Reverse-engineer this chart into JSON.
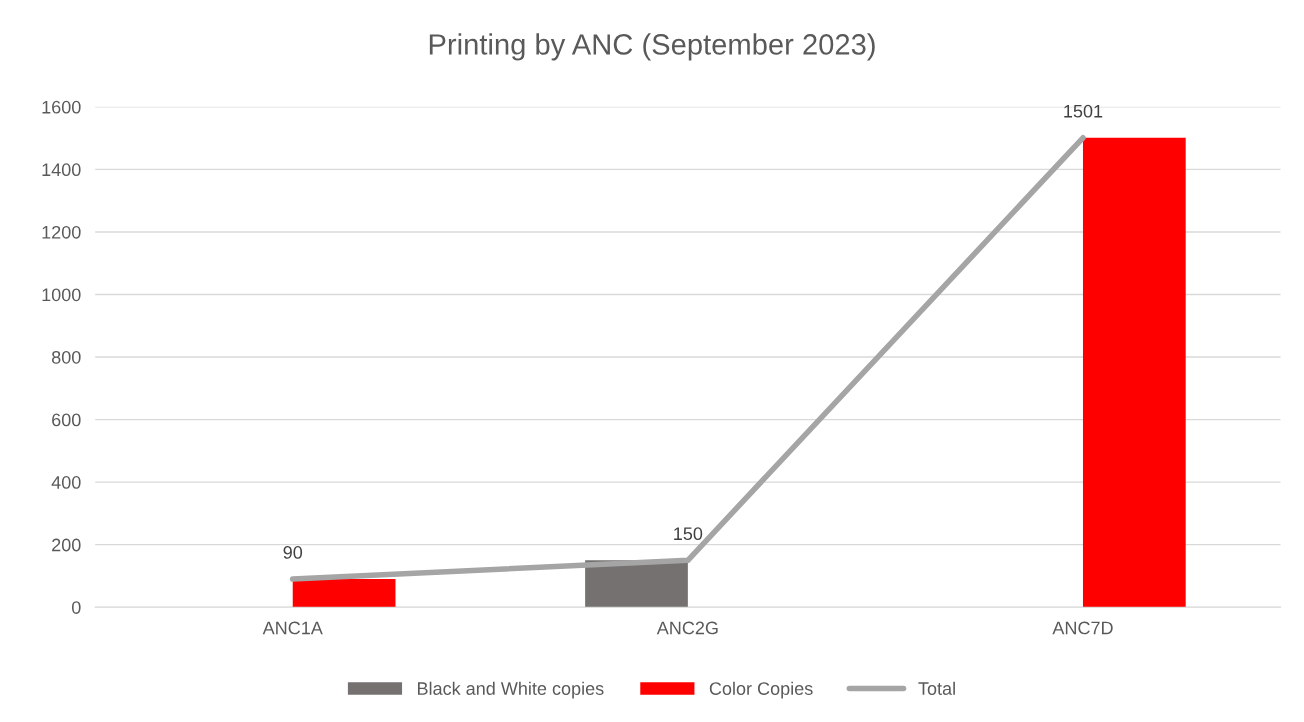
{
  "chart_data": {
    "type": "bar",
    "title": "Printing by ANC (September 2023)",
    "categories": [
      "ANC1A",
      "ANC2G",
      "ANC7D"
    ],
    "series": [
      {
        "name": "Black and White copies",
        "color": "#767171",
        "values": [
          null,
          150,
          null
        ]
      },
      {
        "name": "Color Copies",
        "color": "#ff0000",
        "values": [
          90,
          null,
          1501
        ]
      },
      {
        "name": "Total",
        "type": "line",
        "color": "#a5a5a5",
        "values": [
          90,
          150,
          1501
        ],
        "value_labels": [
          "90",
          "150",
          "1501"
        ]
      }
    ],
    "ylim": [
      0,
      1600
    ],
    "yticks": [
      0,
      200,
      400,
      600,
      800,
      1000,
      1200,
      1400,
      1600
    ],
    "grid": "y",
    "legend": "bottom"
  }
}
